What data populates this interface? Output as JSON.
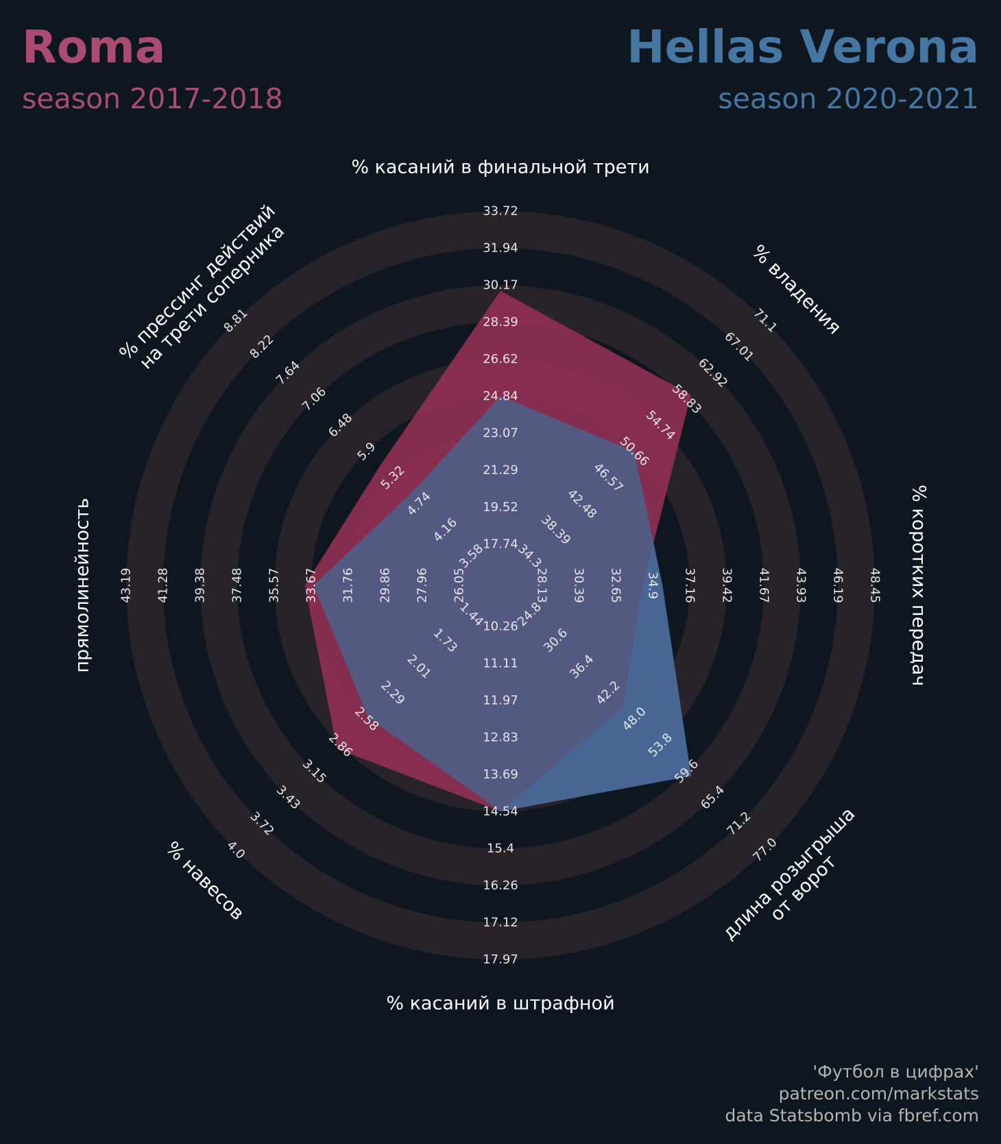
{
  "header": {
    "team_a": {
      "name": "Roma",
      "season": "season 2017-2018",
      "color": "#aa4b72"
    },
    "team_b": {
      "name": "Hellas Verona",
      "season": "season 2020-2021",
      "color": "#4677a3"
    }
  },
  "credits": [
    "'Футбол в цифрах'",
    "patreon.com/markstats",
    "data Statsbomb via fbref.com"
  ],
  "colors": {
    "background": "#0e1720",
    "ring": "#28232b",
    "roma_fill": "#8c2e52",
    "verona_fill": "#4b6a9a",
    "overlap_fill": "#545981"
  },
  "chart_data": {
    "type": "radar",
    "rings": 5,
    "params": [
      {
        "label": [
          "% касаний в финальной трети"
        ],
        "ticks": [
          "17.74",
          "19.52",
          "21.29",
          "23.07",
          "24.84",
          "26.62",
          "28.39",
          "30.17",
          "31.94",
          "33.72"
        ],
        "roma": 29.9,
        "verona": 24.84
      },
      {
        "label": [
          "% владения"
        ],
        "ticks": [
          "34.3",
          "38.39",
          "42.48",
          "46.57",
          "50.66",
          "54.74",
          "58.83",
          "62.92",
          "67.01",
          "71.1"
        ],
        "roma": 59.5,
        "verona": 50.66
      },
      {
        "label": [
          "% коротких передач"
        ],
        "ticks": [
          "28.13",
          "30.39",
          "32.65",
          "34.9",
          "37.16",
          "39.42",
          "41.67",
          "43.93",
          "46.19",
          "48.45"
        ],
        "roma": 34.3,
        "verona": 35.5
      },
      {
        "label": [
          "длина розыгрыша",
          "от ворот"
        ],
        "ticks": [
          "24.8",
          "30.6",
          "36.4",
          "42.2",
          "48.0",
          "53.8",
          "59.6",
          "65.4",
          "71.2",
          "77.0"
        ],
        "roma": 45.4,
        "verona": 60.6
      },
      {
        "label": [
          "% касаний в штрафной"
        ],
        "ticks": [
          "10.26",
          "11.11",
          "11.97",
          "12.83",
          "13.69",
          "14.54",
          "15.4",
          "16.26",
          "17.12",
          "17.97"
        ],
        "roma": 14.54,
        "verona": 14.54
      },
      {
        "label": [
          "% навесов"
        ],
        "ticks": [
          "1.44",
          "1.73",
          "2.01",
          "2.29",
          "2.58",
          "2.86",
          "3.15",
          "3.43",
          "3.72",
          "4.0"
        ],
        "roma": 2.9,
        "verona": 2.56
      },
      {
        "label": [
          "прямолинейность"
        ],
        "ticks": [
          "26.05",
          "27.96",
          "29.86",
          "31.76",
          "33.67",
          "35.57",
          "37.48",
          "39.38",
          "41.28",
          "43.19"
        ],
        "roma": 34.0,
        "verona": 33.55
      },
      {
        "label": [
          "% прессинг действий",
          "на трети соперника"
        ],
        "ticks": [
          "3.58",
          "4.16",
          "4.74",
          "5.32",
          "5.9",
          "6.48",
          "7.06",
          "7.64",
          "8.22",
          "8.81"
        ],
        "roma": 5.6,
        "verona": 4.95
      }
    ]
  }
}
